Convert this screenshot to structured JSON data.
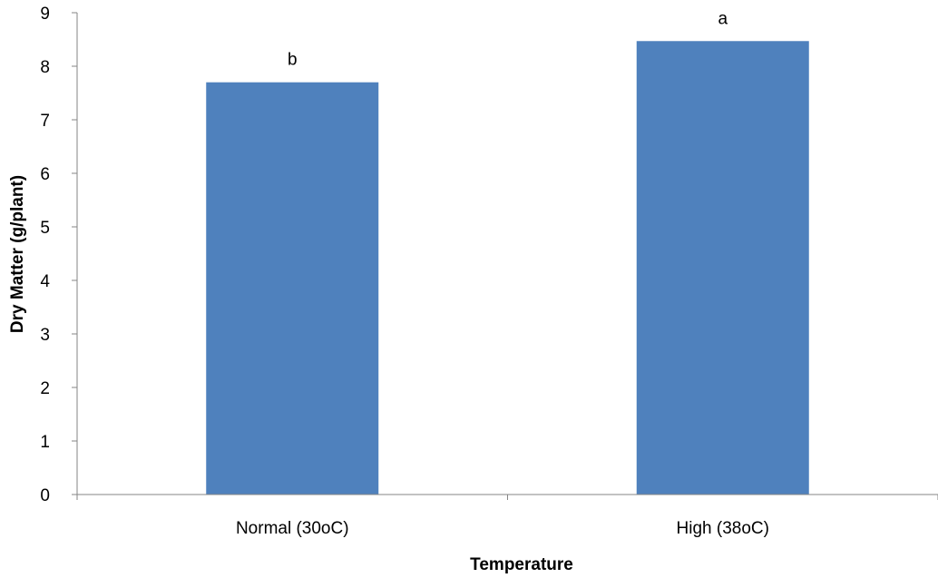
{
  "chart_data": {
    "type": "bar",
    "categories": [
      "Normal (30oC)",
      "High (38oC)"
    ],
    "series": [
      {
        "values": [
          7.7,
          8.47
        ],
        "data_labels": [
          "b",
          "a"
        ]
      }
    ],
    "title": "",
    "xlabel": "Temperature",
    "ylabel": "Dry Matter (g/plant)",
    "ylim": [
      0,
      9
    ],
    "yticks": [
      "0",
      "1",
      "2",
      "3",
      "4",
      "5",
      "6",
      "7",
      "8",
      "9"
    ],
    "grid": false,
    "legend": "none",
    "bar_color": "#4f81bd"
  }
}
